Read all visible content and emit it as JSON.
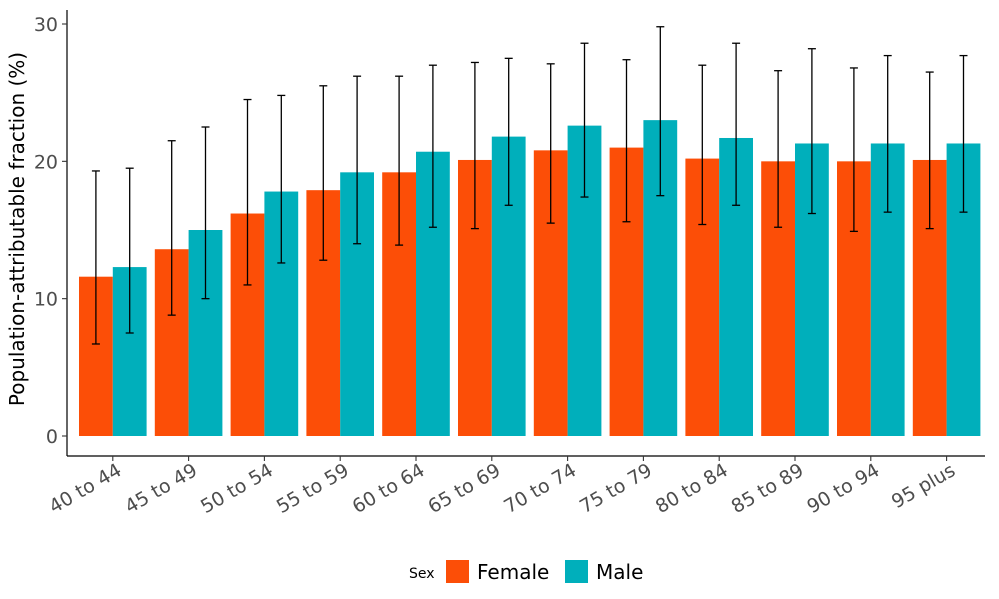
{
  "chart_data": {
    "type": "bar",
    "title": "",
    "xlabel": "",
    "ylabel": "Population-attributable fraction (%)",
    "ylim": [
      0,
      30
    ],
    "yticks": [
      0,
      10,
      20,
      30
    ],
    "grid": false,
    "categories": [
      "40 to 44",
      "45 to 49",
      "50 to 54",
      "55 to 59",
      "60 to 64",
      "65 to 69",
      "70 to 74",
      "75 to 79",
      "80 to 84",
      "85 to 89",
      "90 to 94",
      "95 plus"
    ],
    "series": [
      {
        "name": "Female",
        "color": "#FC4E07",
        "values": [
          11.6,
          13.6,
          16.2,
          17.9,
          19.2,
          20.1,
          20.8,
          21.0,
          20.2,
          20.0,
          20.0,
          20.1
        ],
        "lower": [
          6.7,
          8.8,
          11.0,
          12.8,
          13.9,
          15.1,
          15.5,
          15.6,
          15.4,
          15.2,
          14.9,
          15.1
        ],
        "upper": [
          19.3,
          21.5,
          24.5,
          25.5,
          26.2,
          27.2,
          27.1,
          27.4,
          27.0,
          26.6,
          26.8,
          26.5
        ]
      },
      {
        "name": "Male",
        "color": "#00AFBB",
        "values": [
          12.3,
          15.0,
          17.8,
          19.2,
          20.7,
          21.8,
          22.6,
          23.0,
          21.7,
          21.3,
          21.3,
          21.3
        ],
        "lower": [
          7.5,
          10.0,
          12.6,
          14.0,
          15.2,
          16.8,
          17.4,
          17.5,
          16.8,
          16.2,
          16.3,
          16.3
        ],
        "upper": [
          19.5,
          22.5,
          24.8,
          26.2,
          27.0,
          27.5,
          28.6,
          29.8,
          28.6,
          28.2,
          27.7,
          27.7
        ]
      }
    ],
    "legend": {
      "title": "Sex",
      "position": "bottom"
    }
  }
}
